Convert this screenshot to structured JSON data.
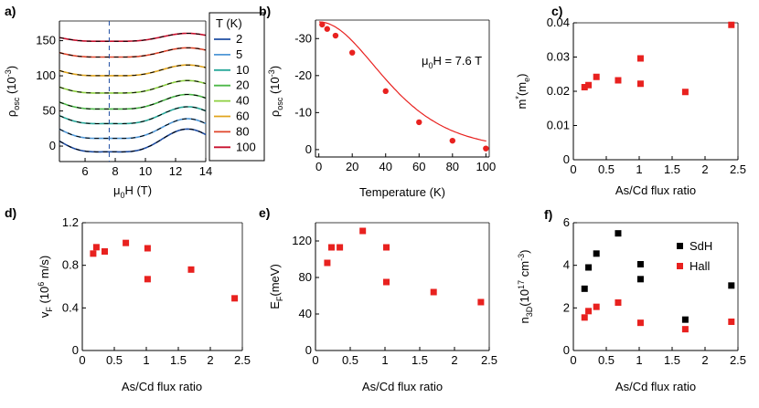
{
  "figure": {
    "panels": [
      {
        "id": "a",
        "label": "a)",
        "type": "line",
        "xlabel_main": "μ",
        "xlabel_sub": "0",
        "xlabel_rest": "H (T)",
        "ylabel_main": "ρ",
        "ylabel_sub": "osc",
        "ylabel_rest": " (10",
        "ylabel_sup": "-3",
        "ylabel_end": ")",
        "xlim": [
          4.3,
          14
        ],
        "ylim": [
          -22,
          178
        ],
        "xticks": [
          "6",
          "8",
          "10",
          "12",
          "14"
        ],
        "yticks": [
          "0",
          "50",
          "100",
          "150"
        ],
        "vline_x": 7.6,
        "legend_title": "T (K)",
        "series": [
          {
            "name": "2",
            "color": "#1f4ea3",
            "offset": 0
          },
          {
            "name": "5",
            "color": "#4f97d6",
            "offset": 18
          },
          {
            "name": "10",
            "color": "#29a89a",
            "offset": 38
          },
          {
            "name": "20",
            "color": "#4cb848",
            "offset": 58
          },
          {
            "name": "40",
            "color": "#8ccf3f",
            "offset": 80
          },
          {
            "name": "60",
            "color": "#e0a41c",
            "offset": 104
          },
          {
            "name": "80",
            "color": "#e0452a",
            "offset": 130
          },
          {
            "name": "100",
            "color": "#c8102e",
            "offset": 152
          }
        ]
      },
      {
        "id": "b",
        "label": "b)",
        "type": "scatter-fit",
        "xlabel": "Temperature (K)",
        "ylabel_main": "ρ",
        "ylabel_sub": "osc",
        "ylabel_rest": " (10",
        "ylabel_sup": "-3",
        "ylabel_end": ")",
        "annotation_main": "μ",
        "annotation_sub": "0",
        "annotation_rest": "H = 7.6 T",
        "xlim": [
          -2,
          102
        ],
        "ylim": [
          2,
          -35
        ],
        "xticks": [
          "0",
          "20",
          "40",
          "60",
          "80",
          "100"
        ],
        "yticks": [
          "0",
          "-10",
          "-20",
          "-30"
        ],
        "x": [
          2,
          5,
          10,
          20,
          40,
          60,
          80,
          100
        ],
        "y": [
          -33.8,
          -32.6,
          -30.8,
          -26.2,
          -15.8,
          -7.4,
          -2.4,
          -0.3
        ],
        "color": "#e8211f"
      },
      {
        "id": "c",
        "label": "c)",
        "type": "scatter",
        "xlabel": "As/Cd flux ratio",
        "ylabel_main": "m",
        "ylabel_sup": "*",
        "ylabel_rest": "(m",
        "ylabel_sub": "e",
        "ylabel_end": ")",
        "xlim": [
          0,
          2.5
        ],
        "ylim": [
          0,
          0.04
        ],
        "xticks": [
          "0",
          "0.5",
          "1",
          "1.5",
          "2",
          "2.5"
        ],
        "yticks": [
          "0",
          "0.01",
          "0.02",
          "0.03",
          "0.04"
        ],
        "x": [
          0.17,
          0.23,
          0.35,
          0.68,
          1.02,
          1.02,
          1.7,
          2.4
        ],
        "y": [
          0.0212,
          0.0218,
          0.0242,
          0.0232,
          0.0296,
          0.0222,
          0.0198,
          0.0394
        ],
        "color": "#e8211f"
      },
      {
        "id": "d",
        "label": "d)",
        "type": "scatter",
        "xlabel": "As/Cd flux ratio",
        "ylabel_main": "v",
        "ylabel_sub": "F",
        "ylabel_rest": " (10",
        "ylabel_sup": "6",
        "ylabel_end": " m/s)",
        "xlim": [
          0,
          2.5
        ],
        "ylim": [
          0,
          1.2
        ],
        "xticks": [
          "0",
          "0.5",
          "1",
          "1.5",
          "2",
          "2.5"
        ],
        "yticks": [
          "0",
          "0.4",
          "0.8",
          "1.2"
        ],
        "x": [
          0.17,
          0.22,
          0.35,
          0.68,
          1.02,
          1.02,
          1.7,
          2.38
        ],
        "y": [
          0.91,
          0.97,
          0.93,
          1.01,
          0.96,
          0.67,
          0.76,
          0.49
        ],
        "color": "#e8211f"
      },
      {
        "id": "e",
        "label": "e)",
        "type": "scatter",
        "xlabel": "As/Cd flux ratio",
        "ylabel_main": "E",
        "ylabel_sub": "F",
        "ylabel_rest": "(meV)",
        "xlim": [
          0,
          2.5
        ],
        "ylim": [
          0,
          140
        ],
        "xticks": [
          "0",
          "0.5",
          "1",
          "1.5",
          "2",
          "2.5"
        ],
        "yticks": [
          "0",
          "40",
          "80",
          "120"
        ],
        "x": [
          0.17,
          0.23,
          0.35,
          0.68,
          1.02,
          1.02,
          1.7,
          2.38
        ],
        "y": [
          96,
          113,
          113,
          131,
          113,
          75,
          64,
          53
        ],
        "color": "#e8211f"
      },
      {
        "id": "f",
        "label": "f)",
        "type": "scatter",
        "xlabel": "As/Cd flux ratio",
        "ylabel_main": "n",
        "ylabel_sub": "3D",
        "ylabel_rest": "(10",
        "ylabel_sup": "17",
        "ylabel_end": " cm",
        "ylabel_sup2": "-3",
        "ylabel_end2": ")",
        "xlim": [
          0,
          2.5
        ],
        "ylim": [
          0,
          6
        ],
        "xticks": [
          "0",
          "0.5",
          "1",
          "1.5",
          "2",
          "2.5"
        ],
        "yticks": [
          "0",
          "2",
          "4",
          "6"
        ],
        "series": [
          {
            "name": "SdH",
            "color": "#000000",
            "x": [
              0.17,
              0.23,
              0.35,
              0.68,
              1.02,
              1.02,
              1.7,
              2.4
            ],
            "y": [
              2.9,
              3.9,
              4.55,
              5.5,
              4.05,
              3.35,
              1.45,
              3.05
            ]
          },
          {
            "name": "Hall",
            "color": "#e8211f",
            "x": [
              0.17,
              0.23,
              0.35,
              0.68,
              1.02,
              1.7,
              2.4
            ],
            "y": [
              1.55,
              1.85,
              2.05,
              2.25,
              1.3,
              1.0,
              1.35
            ]
          }
        ]
      }
    ]
  },
  "chart_data": [
    {
      "type": "line",
      "panel": "a",
      "title": "",
      "xlabel": "μ0H (T)",
      "ylabel": "ρosc (10-3)",
      "xlim": [
        4.3,
        14
      ],
      "ylim": [
        -22,
        178
      ],
      "series_names": [
        "2",
        "5",
        "10",
        "20",
        "40",
        "60",
        "80",
        "100"
      ],
      "legend_title": "T (K)"
    },
    {
      "type": "scatter",
      "panel": "b",
      "xlabel": "Temperature (K)",
      "ylabel": "ρosc (10-3)",
      "x": [
        2,
        5,
        10,
        20,
        40,
        60,
        80,
        100
      ],
      "y": [
        -33.8,
        -32.6,
        -30.8,
        -26.2,
        -15.8,
        -7.4,
        -2.4,
        -0.3
      ]
    },
    {
      "type": "scatter",
      "panel": "c",
      "xlabel": "As/Cd flux ratio",
      "ylabel": "m*(me)",
      "x": [
        0.17,
        0.23,
        0.35,
        0.68,
        1.02,
        1.02,
        1.7,
        2.4
      ],
      "y": [
        0.0212,
        0.0218,
        0.0242,
        0.0232,
        0.0296,
        0.0222,
        0.0198,
        0.0394
      ]
    },
    {
      "type": "scatter",
      "panel": "d",
      "xlabel": "As/Cd flux ratio",
      "ylabel": "vF (10^6 m/s)",
      "x": [
        0.17,
        0.22,
        0.35,
        0.68,
        1.02,
        1.02,
        1.7,
        2.38
      ],
      "y": [
        0.91,
        0.97,
        0.93,
        1.01,
        0.96,
        0.67,
        0.76,
        0.49
      ]
    },
    {
      "type": "scatter",
      "panel": "e",
      "xlabel": "As/Cd flux ratio",
      "ylabel": "EF(meV)",
      "x": [
        0.17,
        0.23,
        0.35,
        0.68,
        1.02,
        1.02,
        1.7,
        2.38
      ],
      "y": [
        96,
        113,
        113,
        131,
        113,
        75,
        64,
        53
      ]
    },
    {
      "type": "scatter",
      "panel": "f",
      "xlabel": "As/Cd flux ratio",
      "ylabel": "n3D(10^17 cm^-3)",
      "series": [
        {
          "name": "SdH",
          "x": [
            0.17,
            0.23,
            0.35,
            0.68,
            1.02,
            1.02,
            1.7,
            2.4
          ],
          "y": [
            2.9,
            3.9,
            4.55,
            5.5,
            4.05,
            3.35,
            1.45,
            3.05
          ]
        },
        {
          "name": "Hall",
          "x": [
            0.17,
            0.23,
            0.35,
            0.68,
            1.02,
            1.7,
            2.4
          ],
          "y": [
            1.55,
            1.85,
            2.05,
            2.25,
            1.3,
            1.0,
            1.35
          ]
        }
      ]
    }
  ]
}
